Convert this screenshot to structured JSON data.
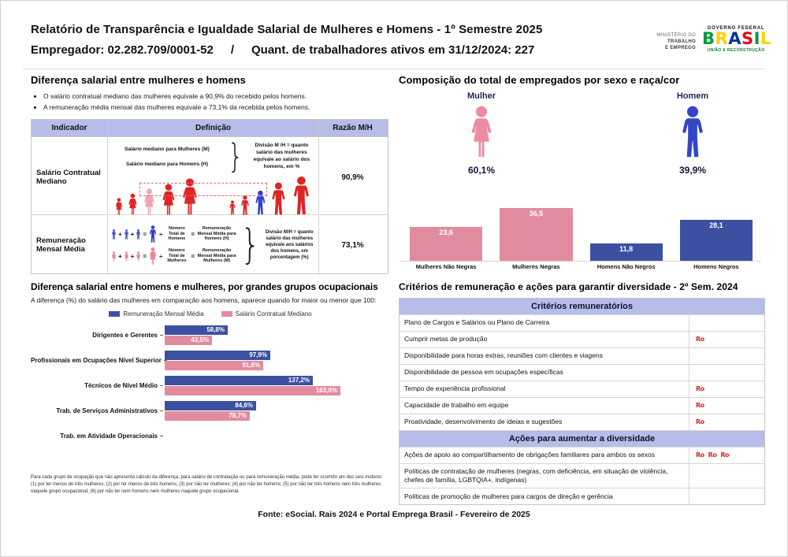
{
  "header": {
    "title": "Relatório de Transparência e Igualdade Salarial de Mulheres e Homens - 1º Semestre 2025",
    "employer": "Empregador: 02.282.709/0001-52",
    "slash": "/",
    "active_workers": "Quant. de trabalhadores ativos em 31/12/2024: 227",
    "ministry_logo": {
      "line1": "MINISTÉRIO DO",
      "line2": "TRABALHO",
      "line3": "E EMPREGO"
    },
    "gov_logo": {
      "top": "GOVERNO FEDERAL",
      "brand": "BRASIL",
      "brand_colors": [
        "#009c3b",
        "#ffd000",
        "#0033a0",
        "#e30613",
        "#009c3b",
        "#ffd000"
      ],
      "bottom": "UNIÃO E RECONSTRUÇÃO"
    }
  },
  "salary_gap": {
    "title": "Diferença salarial entre mulheres e homens",
    "bullets": [
      "O salário contratual mediano das mulheres equivale a 90,9% do recebido pelos homens.",
      "A remuneração média mensal das mulheres equivale a 73,1% da recebida pelos homens."
    ],
    "table": {
      "headers": [
        "Indicador",
        "Definição",
        "Razão M/H"
      ],
      "rows": [
        {
          "indicator": "Salário Contratual Mediano",
          "definition_lines": [
            "Salário mediano para Mulheres (M)",
            "Salário mediano para Homens (H)"
          ],
          "definition_note": "Divisão M /H = quanto salário das mulheres equivale ao salário dos homens, em %",
          "ratio": "90,9%"
        },
        {
          "indicator": "Remuneração Mensal Média",
          "men_divisor": "Número Total de Homens",
          "men_result": "Remuneração Mensal Média para Homens (H)",
          "women_divisor": "Número Total de Mulheres",
          "women_result": "Remuneração Mensal Média para Mulheres (M)",
          "definition_note": "Divisão M/H = quanto salário das mulheres equivale aos salários dos homens, em porcentagem (%)",
          "ratio": "73,1%"
        }
      ]
    }
  },
  "composition": {
    "title": "Composição do total de empregados por sexo e raça/cor",
    "female": {
      "label": "Mulher",
      "pct": "60,1%"
    },
    "male": {
      "label": "Homem",
      "pct": "39,9%"
    }
  },
  "occupational": {
    "title": "Diferença salarial entre homens e mulheres, por grandes grupos ocupacionais",
    "subtitle": "A diferença (%) do salário das mulheres em comparação aos homens, aparece quando for maior ou menor que 100:",
    "footnote": "Para cada grupo de ocupação que não apresenta cálculo da diferença, para salário de contratação ou para remuneração média, pode ter ocorrido um dos seis motivos: (1) por ter menos de três mulheres; (2) por ter menos de três homens; (3) por não ter mulheres; (4) por não ter homens; (5) por não ter três homens nem três mulheres naquele grupo ocupacional; (6) por não ter nem homens nem mulheres naquele grupo ocupacional."
  },
  "criteria": {
    "title": "Critérios de remuneração e ações para garantir diversidade - 2º Sem. 2024",
    "section1_header": "Critérios remuneratórios",
    "section2_header": "Ações para aumentar a diversidade",
    "rows_remuneration": [
      {
        "label": "Plano de Cargos e Salários ou Plano de Carreira",
        "markers": 0
      },
      {
        "label": "Cumprir metas de produção",
        "markers": 1
      },
      {
        "label": "Disponibilidade para horas extras, reuniões com clientes e viagens",
        "markers": 0
      },
      {
        "label": "Disponibilidade de pessoa em ocupações específicas",
        "markers": 0
      },
      {
        "label": "Tempo de experiência profissional",
        "markers": 1
      },
      {
        "label": "Capacidade de trabalho em equipe",
        "markers": 1
      },
      {
        "label": "Proatividade, desenvolvimento de ideias e sugestões",
        "markers": 1
      }
    ],
    "rows_diversity": [
      {
        "label": "Ações de apoio ao compartilhamento de obrigações familiares para ambos os sexos",
        "markers": 3
      },
      {
        "label": "Políticas de contratação de mulheres (negras, com deficiência, em situação de violência, chefes de família, LGBTQIA+, indígenas)",
        "markers": 0
      },
      {
        "label": "Políticas de promoção de mulheres para cargos de direção e gerência",
        "markers": 0
      }
    ],
    "marker": {
      "glyph": "Ro",
      "color": "#d9232a"
    }
  },
  "footer": {
    "source": "Fonte: eSocial. Rais 2024 e Portal Emprega Brasil - Fevereiro de 2025"
  },
  "colors": {
    "table_header_bg": "#b6bde8",
    "bar_pink": "#e18c9e",
    "bar_blue": "#3c50a2",
    "figure_red": "#e02424",
    "figure_pink": "#f2a4b8",
    "figure_blue": "#3143cd",
    "woman_icon_pink": "#ee8ba0",
    "man_icon_blue": "#3546c4",
    "marker_red": "#d9232a"
  },
  "chart_data": [
    {
      "type": "bar",
      "title": "Composição do total de empregados por sexo e raça/cor",
      "categories": [
        "Mulheres Não Negras",
        "Mulheres Negras",
        "Homens Não Negros",
        "Homens Negros"
      ],
      "values": [
        23.6,
        36.5,
        11.8,
        28.1
      ],
      "value_labels": [
        "23,6",
        "36,5",
        "11,8",
        "28,1"
      ],
      "colors": [
        "#e18c9e",
        "#e18c9e",
        "#3c50a2",
        "#3c50a2"
      ],
      "unit": "%",
      "female_total": "60,1%",
      "male_total": "39,9%",
      "ylim": [
        0,
        40
      ],
      "grid": false
    },
    {
      "type": "bar",
      "orientation": "horizontal",
      "title": "Diferença salarial entre homens e mulheres, por grandes grupos ocupacionais",
      "categories": [
        "Dirigentes e Gerentes",
        "Profissionais em Ocupações Nível Superior",
        "Técnicos de Nível Médio",
        "Trab. de Serviços Administrativos",
        "Trab. em Atividade Operacionais"
      ],
      "series": [
        {
          "name": "Remuneração Mensal Média",
          "color": "#3c50a2",
          "values": [
            58.8,
            97.9,
            137.2,
            84.6,
            null
          ],
          "labels": [
            "58,8%",
            "97,9%",
            "137,2%",
            "84,6%",
            ""
          ]
        },
        {
          "name": "Salário Contratual Mediano",
          "color": "#e18c9e",
          "values": [
            43.5,
            91.6,
            163.0,
            78.7,
            null
          ],
          "labels": [
            "43,5%",
            "91,6%",
            "163,0%",
            "78,7%",
            ""
          ]
        }
      ],
      "xlim": [
        0,
        170
      ],
      "legend_position": "top",
      "grid": false
    }
  ]
}
